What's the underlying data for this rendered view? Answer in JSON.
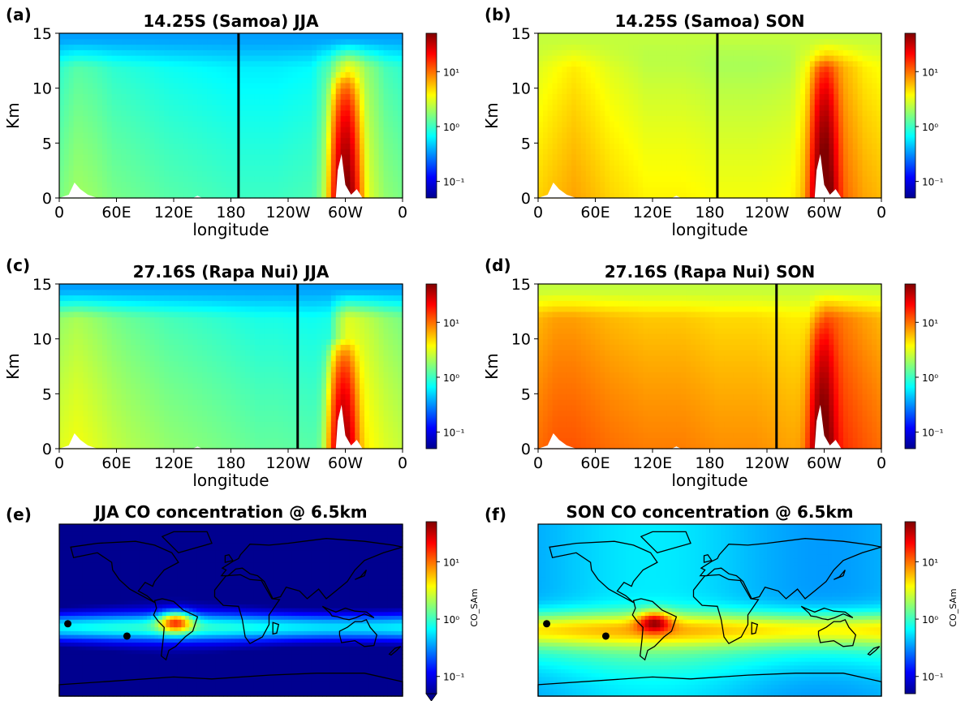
{
  "figure": {
    "cbar_ticks": [
      "10¹",
      "10⁰",
      "10⁻¹"
    ],
    "cbar_values": [
      10,
      1,
      0.1
    ],
    "cbar_range": [
      0.05,
      50
    ],
    "cbar_scale": "log",
    "map_cbar_label": "CO_SAm",
    "colormap": "jet",
    "site_marker_color": "#000000",
    "land_mask_color": "#ffffff"
  },
  "chart_data": [
    {
      "panel": "(a)",
      "type": "heatmap",
      "title": "14.25S (Samoa) JJA",
      "xlabel": "longitude",
      "ylabel": "Km",
      "x_ticks": [
        "0",
        "60E",
        "120E",
        "180",
        "120W",
        "60W",
        "0"
      ],
      "y_ticks": [
        "0",
        "5",
        "10",
        "15"
      ],
      "xlim": [
        0,
        360
      ],
      "ylim": [
        0,
        15
      ],
      "season": "JJA",
      "site_lon": 188,
      "upper_trop_value": 0.35,
      "column_values": [
        1.5,
        2.0,
        1.8,
        1.5,
        1.4,
        1.3,
        1.2,
        1.15,
        1.1,
        1.05,
        1.0,
        1.0,
        1.0,
        1.05,
        1.1,
        2.0,
        6.0,
        3.0,
        1.8,
        1.5
      ],
      "plume": {
        "lon": 300,
        "value": 50,
        "top_km": 11.5
      }
    },
    {
      "panel": "(b)",
      "type": "heatmap",
      "title": "14.25S (Samoa) SON",
      "xlabel": "longitude",
      "ylabel": "Km",
      "x_ticks": [
        "0",
        "60E",
        "120E",
        "180",
        "120W",
        "60W",
        "0"
      ],
      "y_ticks": [
        "0",
        "5",
        "10",
        "15"
      ],
      "xlim": [
        0,
        360
      ],
      "ylim": [
        0,
        15
      ],
      "season": "SON",
      "site_lon": 188,
      "upper_trop_value": 2.5,
      "column_values": [
        5.0,
        6.0,
        7.0,
        6.0,
        5.0,
        4.5,
        4.0,
        4.0,
        4.0,
        3.8,
        3.5,
        3.5,
        3.5,
        3.6,
        3.8,
        6.0,
        15.0,
        10.0,
        7.0,
        6.0
      ],
      "plume": {
        "lon": 300,
        "value": 60,
        "top_km": 13
      }
    },
    {
      "panel": "(c)",
      "type": "heatmap",
      "title": "27.16S (Rapa Nui) JJA",
      "xlabel": "longitude",
      "ylabel": "Km",
      "x_ticks": [
        "0",
        "60E",
        "120E",
        "180",
        "120W",
        "60W",
        "0"
      ],
      "y_ticks": [
        "0",
        "5",
        "10",
        "15"
      ],
      "xlim": [
        0,
        360
      ],
      "ylim": [
        0,
        15
      ],
      "season": "JJA",
      "site_lon": 250,
      "upper_trop_value": 0.35,
      "column_values": [
        3.0,
        3.5,
        3.0,
        2.5,
        2.2,
        2.0,
        1.8,
        1.7,
        1.6,
        1.5,
        1.4,
        1.3,
        1.3,
        1.25,
        1.2,
        1.3,
        5.0,
        4.0,
        3.0,
        2.5
      ],
      "plume": {
        "lon": 298,
        "value": 40,
        "top_km": 10
      }
    },
    {
      "panel": "(d)",
      "type": "heatmap",
      "title": "27.16S (Rapa Nui) SON",
      "xlabel": "longitude",
      "ylabel": "Km",
      "x_ticks": [
        "0",
        "60E",
        "120E",
        "180",
        "120W",
        "60W",
        "0"
      ],
      "y_ticks": [
        "0",
        "5",
        "10",
        "15"
      ],
      "xlim": [
        0,
        360
      ],
      "ylim": [
        0,
        15
      ],
      "season": "SON",
      "site_lon": 250,
      "upper_trop_value": 2.5,
      "column_values": [
        10.0,
        12.0,
        12.0,
        11.0,
        10.0,
        9.5,
        9.0,
        9.0,
        9.0,
        8.5,
        8.0,
        8.0,
        8.0,
        7.5,
        7.0,
        7.0,
        20.0,
        15.0,
        12.0,
        10.0
      ],
      "plume": {
        "lon": 298,
        "value": 50,
        "top_km": 12
      }
    },
    {
      "panel": "(e)",
      "type": "heatmap",
      "title": "JJA CO concentration @ 6.5km",
      "colorbar_label": "CO_SAm",
      "season": "JJA",
      "altitude_km": 6.5,
      "sites": [
        {
          "lon": -171,
          "lat": -14.25
        },
        {
          "lon": -109,
          "lat": -27.16
        }
      ]
    },
    {
      "panel": "(f)",
      "type": "heatmap",
      "title": "SON CO concentration @ 6.5km",
      "colorbar_label": "CO_SAm",
      "season": "SON",
      "altitude_km": 6.5,
      "sites": [
        {
          "lon": -171,
          "lat": -14.25
        },
        {
          "lon": -109,
          "lat": -27.16
        }
      ]
    }
  ]
}
